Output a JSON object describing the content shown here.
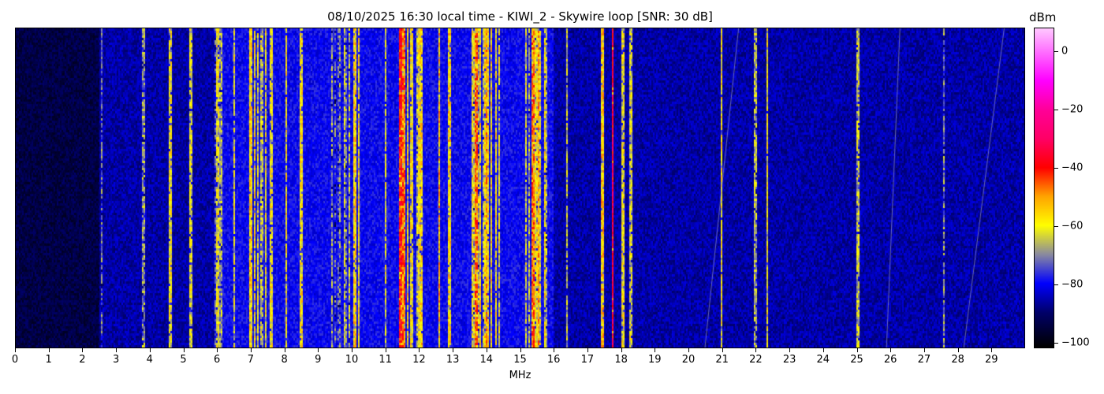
{
  "chart_data": {
    "type": "heatmap",
    "title": "08/10/2025 16:30 local time - KIWI_2 - Skywire loop [SNR: 30 dB]",
    "xlabel": "MHz",
    "xlim": [
      0,
      30
    ],
    "x_ticks": [
      "0",
      "1",
      "2",
      "3",
      "4",
      "5",
      "6",
      "7",
      "8",
      "9",
      "10",
      "11",
      "12",
      "13",
      "14",
      "15",
      "16",
      "17",
      "18",
      "19",
      "20",
      "21",
      "22",
      "23",
      "24",
      "25",
      "26",
      "27",
      "28",
      "29"
    ],
    "colorbar": {
      "label": "dBm",
      "range": [
        -102,
        8
      ],
      "ticks": [
        0,
        -20,
        -40,
        -60,
        -80,
        -100
      ],
      "tick_labels": [
        "0",
        "−20",
        "−40",
        "−60",
        "−80",
        "−100"
      ],
      "colormap": [
        [
          -102,
          "#000000"
        ],
        [
          -90,
          "#00006a"
        ],
        [
          -80,
          "#0000ff"
        ],
        [
          -70,
          "#8a8aa0"
        ],
        [
          -60,
          "#ffff00"
        ],
        [
          -50,
          "#ffa500"
        ],
        [
          -40,
          "#ff0000"
        ],
        [
          -30,
          "#ff0066"
        ],
        [
          -20,
          "#ff0099"
        ],
        [
          -10,
          "#ff00ff"
        ],
        [
          8,
          "#ffc8ff"
        ]
      ]
    },
    "noise_floor": [
      {
        "from": 0,
        "to": 2.5,
        "dbm": -94
      },
      {
        "from": 2.5,
        "to": 6,
        "dbm": -86
      },
      {
        "from": 6,
        "to": 16,
        "dbm": -80
      },
      {
        "from": 16,
        "to": 30,
        "dbm": -86
      }
    ],
    "broadcast_bands": [
      {
        "from": 5.9,
        "to": 6.2,
        "dbm": -68
      },
      {
        "from": 7.2,
        "to": 7.6,
        "dbm": -66
      },
      {
        "from": 9.4,
        "to": 10.0,
        "dbm": -68
      },
      {
        "from": 11.6,
        "to": 12.1,
        "dbm": -62
      },
      {
        "from": 13.5,
        "to": 14.4,
        "dbm": -62
      },
      {
        "from": 15.1,
        "to": 15.8,
        "dbm": -64
      }
    ],
    "signals": [
      {
        "mhz": 2.55,
        "dbm": -72
      },
      {
        "mhz": 3.8,
        "dbm": -68
      },
      {
        "mhz": 4.6,
        "dbm": -60
      },
      {
        "mhz": 5.2,
        "dbm": -62
      },
      {
        "mhz": 6.0,
        "dbm": -60
      },
      {
        "mhz": 6.5,
        "dbm": -62
      },
      {
        "mhz": 7.0,
        "dbm": -56
      },
      {
        "mhz": 7.1,
        "dbm": -58
      },
      {
        "mhz": 7.6,
        "dbm": -60
      },
      {
        "mhz": 8.05,
        "dbm": -58
      },
      {
        "mhz": 8.5,
        "dbm": -58
      },
      {
        "mhz": 10.1,
        "dbm": -56
      },
      {
        "mhz": 10.2,
        "dbm": -58
      },
      {
        "mhz": 11.0,
        "dbm": -62
      },
      {
        "mhz": 11.45,
        "dbm": -40
      },
      {
        "mhz": 11.55,
        "dbm": -46
      },
      {
        "mhz": 12.6,
        "dbm": -52
      },
      {
        "mhz": 12.9,
        "dbm": -56
      },
      {
        "mhz": 13.7,
        "dbm": -46
      },
      {
        "mhz": 14.0,
        "dbm": -50
      },
      {
        "mhz": 15.4,
        "dbm": -46
      },
      {
        "mhz": 15.55,
        "dbm": -50
      },
      {
        "mhz": 16.4,
        "dbm": -64
      },
      {
        "mhz": 17.45,
        "dbm": -54
      },
      {
        "mhz": 17.75,
        "dbm": -34
      },
      {
        "mhz": 18.05,
        "dbm": -60
      },
      {
        "mhz": 18.3,
        "dbm": -62
      },
      {
        "mhz": 21.0,
        "dbm": -58
      },
      {
        "mhz": 22.0,
        "dbm": -66
      },
      {
        "mhz": 22.35,
        "dbm": -60
      },
      {
        "mhz": 25.05,
        "dbm": -64
      },
      {
        "mhz": 27.6,
        "dbm": -70
      }
    ]
  }
}
